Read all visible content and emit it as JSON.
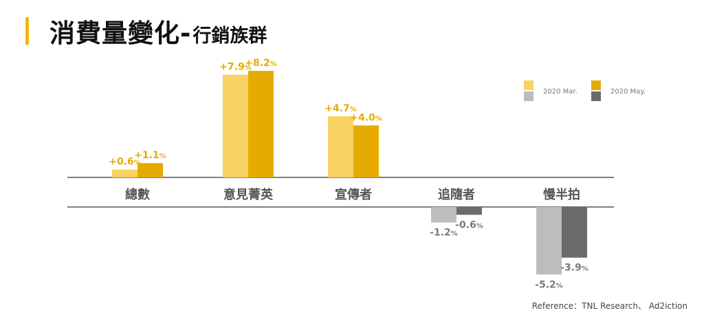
{
  "title": {
    "main": "消費量變化-",
    "sub": "行銷族群"
  },
  "reference": "Reference：TNL Research、 Ad2iction",
  "colors": {
    "accent": "#f2b705",
    "positive_mar": "#f8d262",
    "positive_may": "#e6ab00",
    "negative_mar": "#bdbdbd",
    "negative_may": "#6b6b6b",
    "positive_label": "#e6ab00",
    "negative_label": "#7a7a7a",
    "category_label": "#555555"
  },
  "chart_data": {
    "type": "bar",
    "categories": [
      "總數",
      "意見菁英",
      "宣傳者",
      "追隨者",
      "慢半拍"
    ],
    "series": [
      {
        "name": "2020 Mar.",
        "values": [
          0.6,
          7.9,
          4.7,
          -1.2,
          -5.2
        ]
      },
      {
        "name": "2020 May.",
        "values": [
          1.1,
          8.2,
          4.0,
          -0.6,
          -3.9
        ]
      }
    ],
    "data_labels": [
      [
        "+0.6",
        "+7.9",
        "+4.7",
        "-1.2",
        "-5.2"
      ],
      [
        "+1.1",
        "+8.2",
        "+4.0",
        "-0.6",
        "-3.9"
      ]
    ],
    "unit": "%",
    "legend": {
      "placement": "top-right",
      "swatches": [
        {
          "name": "2020 Mar.",
          "colors": [
            "#f8d262",
            "#bdbdbd"
          ]
        },
        {
          "name": "2020 May.",
          "colors": [
            "#e6ab00",
            "#6b6b6b"
          ]
        }
      ]
    },
    "grid": false,
    "ylim": [
      -5.2,
      8.2
    ]
  }
}
